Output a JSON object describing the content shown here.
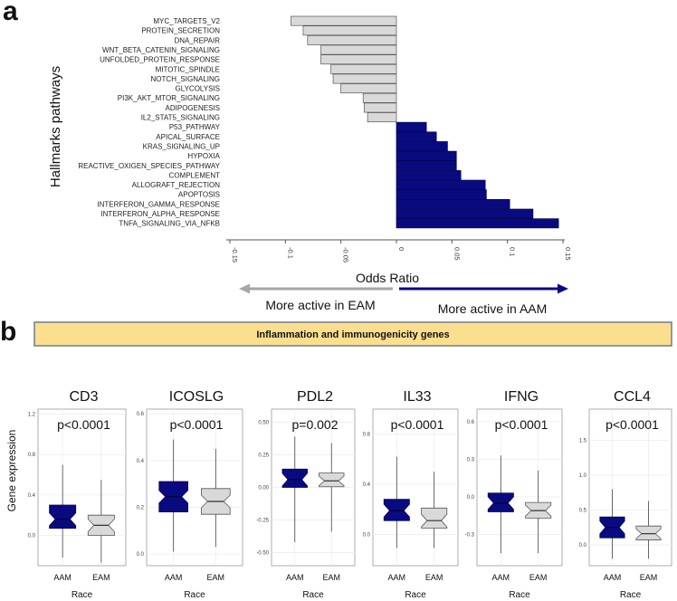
{
  "panel_a_letter": "a",
  "panel_b_letter": "b",
  "colors": {
    "neg": "#d9d9d9",
    "pos": "#0a0a80",
    "arrow_grey": "#a6a6a6",
    "arrow_blue": "#0a0a80",
    "banner": "#fcdf8e",
    "banner_border": "#6e7c8e"
  },
  "arrows": {
    "left_label": "More active in EAM",
    "right_label": "More active in AAM"
  },
  "banner_title": "Inflammation and immunogenicity genes",
  "chart_data": [
    {
      "type": "bar",
      "orientation": "horizontal",
      "title": "",
      "xlabel": "Odds Ratio",
      "ylabel": "Hallmarks pathways",
      "xlim": [
        -0.15,
        0.15
      ],
      "xticks": [
        "-0.15",
        "-0.1",
        "-0.05",
        "0",
        "0.05",
        "0.1",
        "0.15"
      ],
      "xtick_values": [
        -0.15,
        -0.1,
        -0.05,
        0,
        0.05,
        0.1,
        0.15
      ],
      "categories": [
        "MYC_TARGETS_V2",
        "PROTEIN_SECRETION",
        "DNA_REPAIR",
        "WNT_BETA_CATENIN_SIGNALING",
        "UNFOLDED_PROTEIN_RESPONSE",
        "MITOTIC_SPINDLE",
        "NOTCH_SIGNALING",
        "GLYCOLYSIS",
        "PI3K_AKT_MTOR_SIGNALING",
        "ADIPOGENESIS",
        "IL2_STAT5_SIGNALING",
        "P53_PATHWAY",
        "APICAL_SURFACE",
        "KRAS_SIGNALING_UP",
        "HYPOXIA",
        "REACTIVE_OXIGEN_SPECIES_PATHWAY",
        "COMPLEMENT",
        "ALLOGRAFT_REJECTION",
        "APOPTOSIS",
        "INTERFERON_GAMMA_RESPONSE",
        "INTERFERON_ALPHA_RESPONSE",
        "TNFA_SIGNALING_VIA_NFKB"
      ],
      "values": [
        -0.095,
        -0.084,
        -0.08,
        -0.068,
        -0.068,
        -0.059,
        -0.057,
        -0.05,
        -0.03,
        -0.029,
        -0.026,
        0.027,
        0.036,
        0.046,
        0.054,
        0.054,
        0.058,
        0.08,
        0.081,
        0.102,
        0.123,
        0.146
      ]
    },
    {
      "type": "box",
      "xlabel": "Race",
      "ylabel": "Gene expression",
      "categories": [
        "AAM",
        "EAM"
      ],
      "panels": [
        {
          "gene": "CD3",
          "pvalue": "p<0.0001",
          "ylim": [
            -0.3,
            1.25
          ],
          "yticks": [
            "0.0",
            "0.4",
            "0.8",
            "1.2"
          ],
          "ytick_values": [
            0,
            0.4,
            0.8,
            1.2
          ],
          "boxes": [
            {
              "q1": 0.07,
              "median": 0.16,
              "q3": 0.3,
              "lower": -0.22,
              "upper": 0.7
            },
            {
              "q1": 0.0,
              "median": 0.1,
              "q3": 0.2,
              "lower": -0.27,
              "upper": 0.55
            }
          ]
        },
        {
          "gene": "ICOSLG",
          "pvalue": "p<0.0001",
          "ylim": [
            -0.05,
            0.62
          ],
          "yticks": [
            "0.0",
            "0.2",
            "0.4",
            "0.6"
          ],
          "ytick_values": [
            0,
            0.2,
            0.4,
            0.6
          ],
          "boxes": [
            {
              "q1": 0.18,
              "median": 0.245,
              "q3": 0.31,
              "lower": 0.01,
              "upper": 0.49
            },
            {
              "q1": 0.17,
              "median": 0.225,
              "q3": 0.28,
              "lower": 0.03,
              "upper": 0.45
            }
          ]
        },
        {
          "gene": "PDL2",
          "pvalue": "p=0.002",
          "ylim": [
            -0.6,
            0.6
          ],
          "yticks": [
            "-0.50",
            "-0.25",
            "0.00",
            "0.25",
            "0.50"
          ],
          "ytick_values": [
            -0.5,
            -0.25,
            0,
            0.25,
            0.5
          ],
          "boxes": [
            {
              "q1": 0.0,
              "median": 0.06,
              "q3": 0.14,
              "lower": -0.42,
              "upper": 0.39
            },
            {
              "q1": 0.005,
              "median": 0.05,
              "q3": 0.11,
              "lower": -0.34,
              "upper": 0.34
            }
          ]
        },
        {
          "gene": "IL33",
          "pvalue": "p<0.0001",
          "ylim": [
            -0.25,
            1.0
          ],
          "yticks": [
            "0.0",
            "0.4",
            "0.8"
          ],
          "ytick_values": [
            0,
            0.4,
            0.8
          ],
          "boxes": [
            {
              "q1": 0.11,
              "median": 0.19,
              "q3": 0.28,
              "lower": -0.11,
              "upper": 0.62
            },
            {
              "q1": 0.05,
              "median": 0.11,
              "q3": 0.21,
              "lower": -0.11,
              "upper": 0.5
            }
          ]
        },
        {
          "gene": "IFNG",
          "pvalue": "p<0.0001",
          "ylim": [
            -0.55,
            0.7
          ],
          "yticks": [
            "-0.3",
            "0.0",
            "0.3",
            "0.6"
          ],
          "ytick_values": [
            -0.3,
            0,
            0.3,
            0.6
          ],
          "boxes": [
            {
              "q1": -0.12,
              "median": -0.05,
              "q3": 0.03,
              "lower": -0.45,
              "upper": 0.33
            },
            {
              "q1": -0.17,
              "median": -0.11,
              "q3": -0.045,
              "lower": -0.45,
              "upper": 0.21
            }
          ]
        },
        {
          "gene": "CCL4",
          "pvalue": "p<0.0001",
          "ylim": [
            -0.3,
            1.95
          ],
          "yticks": [
            "0.0",
            "0.5",
            "1.0",
            "1.5"
          ],
          "ytick_values": [
            0,
            0.5,
            1.0,
            1.5
          ],
          "boxes": [
            {
              "q1": 0.1,
              "median": 0.25,
              "q3": 0.4,
              "lower": -0.2,
              "upper": 0.8
            },
            {
              "q1": 0.07,
              "median": 0.16,
              "q3": 0.27,
              "lower": -0.2,
              "upper": 0.63
            }
          ]
        }
      ]
    }
  ]
}
